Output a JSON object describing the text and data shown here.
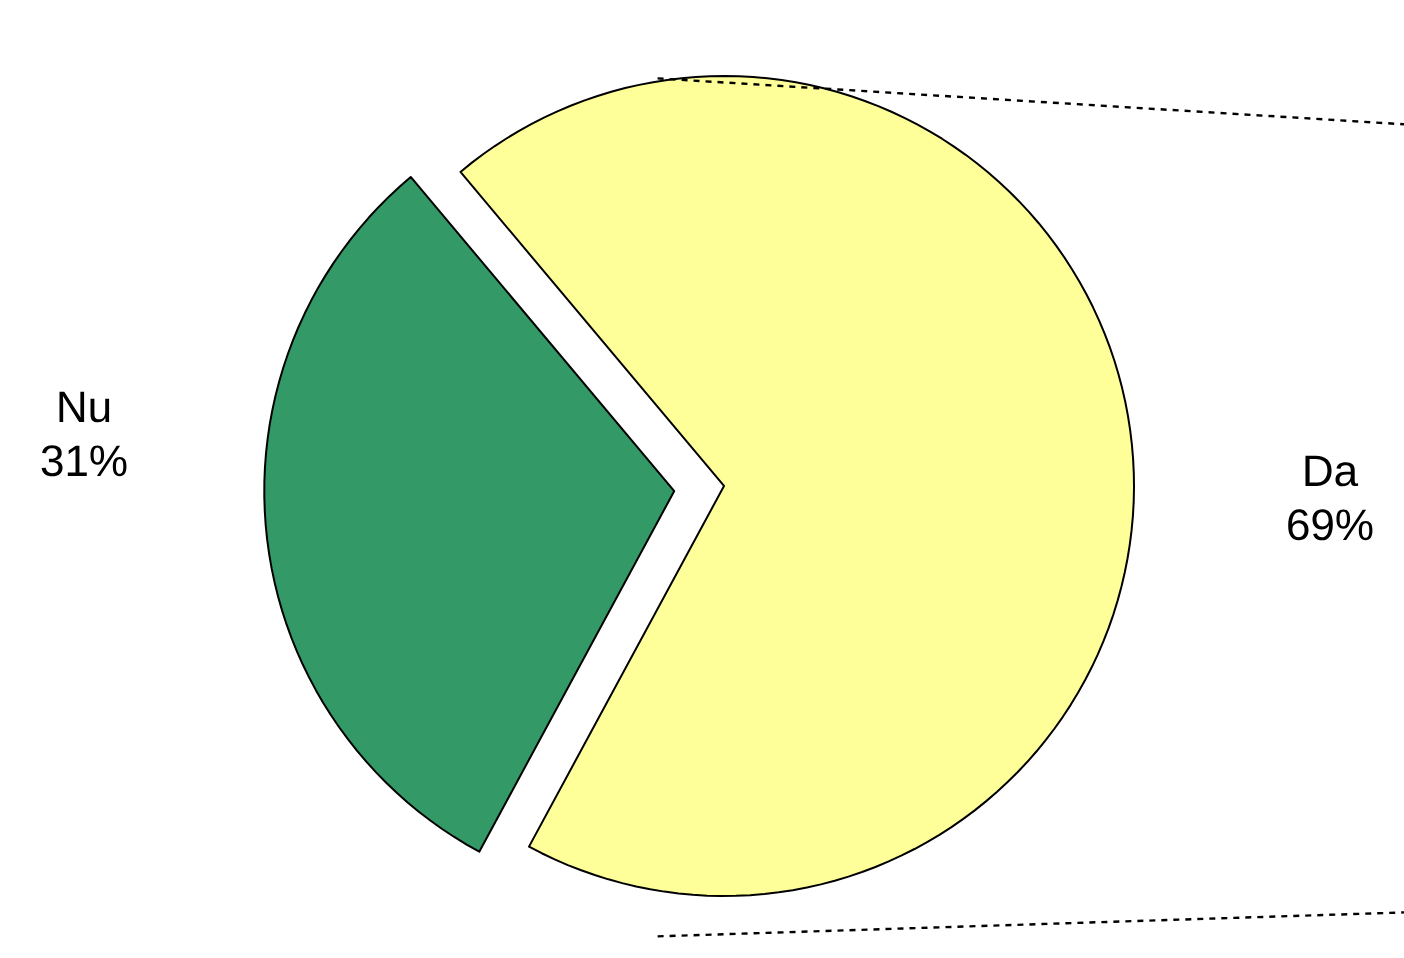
{
  "chart_data": {
    "type": "pie",
    "categories": [
      "Da",
      "Nu"
    ],
    "values": [
      69,
      31
    ],
    "value_labels": [
      "69%",
      "31%"
    ],
    "colors": [
      "#ffff99",
      "#339966"
    ]
  }
}
